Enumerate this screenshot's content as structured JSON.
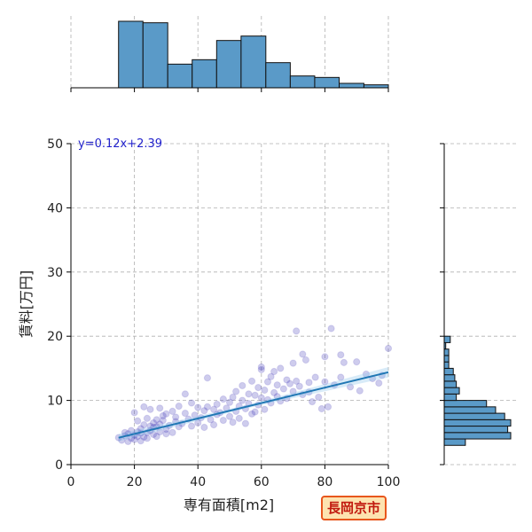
{
  "chart_data": {
    "type": "scatter",
    "xlabel": "専有面積[m2]",
    "ylabel": "賃料[万円]",
    "xlim": [
      0,
      100
    ],
    "ylim": [
      0,
      50
    ],
    "x_ticks": [
      0,
      20,
      40,
      60,
      80,
      100
    ],
    "y_ticks": [
      0,
      10,
      20,
      30,
      40,
      50
    ],
    "grid": true,
    "equation": "y=0.12x+2.39",
    "regression": {
      "slope": 0.12,
      "intercept": 2.39,
      "x_range": [
        15,
        100
      ]
    },
    "badge": "長岡京市",
    "colors": {
      "points": "#3a32b8",
      "line": "#1f77b4",
      "hist": "#5a9ac8",
      "equation": "#2222cc",
      "badge_border": "#e8561c",
      "badge_text": "#c1190e"
    },
    "points": [
      [
        15,
        4.2
      ],
      [
        16,
        3.8
      ],
      [
        17,
        4.5
      ],
      [
        17,
        5.0
      ],
      [
        18,
        3.6
      ],
      [
        18,
        4.8
      ],
      [
        19,
        4.1
      ],
      [
        19,
        5.3
      ],
      [
        20,
        3.9
      ],
      [
        20,
        4.6
      ],
      [
        20,
        8.1
      ],
      [
        21,
        4.4
      ],
      [
        21,
        5.1
      ],
      [
        21,
        6.8
      ],
      [
        22,
        3.7
      ],
      [
        22,
        4.9
      ],
      [
        22,
        5.6
      ],
      [
        23,
        4.3
      ],
      [
        23,
        6.2
      ],
      [
        23,
        9.0
      ],
      [
        24,
        5.0
      ],
      [
        24,
        7.2
      ],
      [
        24,
        4.1
      ],
      [
        25,
        6.0
      ],
      [
        25,
        5.3
      ],
      [
        25,
        8.6
      ],
      [
        26,
        4.7
      ],
      [
        26,
        6.5
      ],
      [
        26,
        5.8
      ],
      [
        27,
        7.0
      ],
      [
        27,
        4.4
      ],
      [
        27,
        5.9
      ],
      [
        28,
        6.3
      ],
      [
        28,
        8.8
      ],
      [
        28,
        5.1
      ],
      [
        29,
        6.9
      ],
      [
        29,
        7.6
      ],
      [
        30,
        5.5
      ],
      [
        30,
        4.8
      ],
      [
        30,
        7.9
      ],
      [
        31,
        6.1
      ],
      [
        32,
        5.0
      ],
      [
        32,
        8.3
      ],
      [
        33,
        6.7
      ],
      [
        33,
        7.4
      ],
      [
        34,
        5.9
      ],
      [
        34,
        9.1
      ],
      [
        35,
        6.4
      ],
      [
        36,
        8.0
      ],
      [
        36,
        11.0
      ],
      [
        37,
        7.1
      ],
      [
        38,
        6.0
      ],
      [
        38,
        9.6
      ],
      [
        39,
        7.7
      ],
      [
        40,
        6.5
      ],
      [
        40,
        8.9
      ],
      [
        41,
        7.3
      ],
      [
        42,
        8.4
      ],
      [
        42,
        5.8
      ],
      [
        43,
        9.0
      ],
      [
        43,
        13.5
      ],
      [
        44,
        7.0
      ],
      [
        45,
        8.6
      ],
      [
        45,
        6.2
      ],
      [
        46,
        9.4
      ],
      [
        46,
        7.8
      ],
      [
        47,
        8.1
      ],
      [
        48,
        10.2
      ],
      [
        48,
        6.9
      ],
      [
        49,
        8.8
      ],
      [
        50,
        7.5
      ],
      [
        50,
        9.7
      ],
      [
        51,
        10.5
      ],
      [
        51,
        6.6
      ],
      [
        52,
        8.3
      ],
      [
        52,
        11.4
      ],
      [
        53,
        9.1
      ],
      [
        53,
        7.2
      ],
      [
        54,
        10.0
      ],
      [
        54,
        12.3
      ],
      [
        55,
        8.7
      ],
      [
        55,
        6.4
      ],
      [
        56,
        11.0
      ],
      [
        56,
        9.5
      ],
      [
        57,
        13.0
      ],
      [
        57,
        7.9
      ],
      [
        58,
        10.8
      ],
      [
        58,
        8.2
      ],
      [
        59,
        12.0
      ],
      [
        59,
        9.3
      ],
      [
        60,
        14.8
      ],
      [
        60,
        15.2
      ],
      [
        60,
        10.4
      ],
      [
        61,
        11.6
      ],
      [
        61,
        8.6
      ],
      [
        62,
        12.9
      ],
      [
        62,
        10.1
      ],
      [
        63,
        9.6
      ],
      [
        63,
        13.7
      ],
      [
        64,
        11.2
      ],
      [
        64,
        14.5
      ],
      [
        65,
        10.6
      ],
      [
        65,
        12.4
      ],
      [
        66,
        9.9
      ],
      [
        66,
        15.0
      ],
      [
        67,
        11.8
      ],
      [
        68,
        13.2
      ],
      [
        68,
        10.3
      ],
      [
        69,
        12.6
      ],
      [
        70,
        11.4
      ],
      [
        70,
        15.8
      ],
      [
        71,
        20.8
      ],
      [
        71,
        13.0
      ],
      [
        72,
        12.2
      ],
      [
        73,
        17.2
      ],
      [
        73,
        10.9
      ],
      [
        74,
        16.3
      ],
      [
        75,
        12.8
      ],
      [
        75,
        11.3
      ],
      [
        76,
        9.8
      ],
      [
        77,
        13.6
      ],
      [
        78,
        10.5
      ],
      [
        79,
        8.7
      ],
      [
        80,
        12.9
      ],
      [
        80,
        16.8
      ],
      [
        81,
        9.0
      ],
      [
        82,
        21.2
      ],
      [
        83,
        12.4
      ],
      [
        85,
        17.1
      ],
      [
        85,
        13.6
      ],
      [
        86,
        15.9
      ],
      [
        88,
        12.1
      ],
      [
        90,
        16.0
      ],
      [
        91,
        11.5
      ],
      [
        93,
        14.1
      ],
      [
        95,
        13.4
      ],
      [
        97,
        12.7
      ],
      [
        98,
        13.9
      ],
      [
        100,
        18.1
      ]
    ],
    "top_hist": {
      "bin_edges": [
        15,
        22.7,
        30.5,
        38.2,
        45.9,
        53.6,
        61.4,
        69.1,
        76.8,
        84.5,
        92.3,
        100
      ],
      "counts": [
        45,
        44,
        16,
        19,
        32,
        35,
        17,
        8,
        7,
        3,
        2
      ]
    },
    "right_hist": {
      "bin_edges": [
        3,
        4,
        5,
        6,
        7,
        8,
        9,
        10,
        11,
        12,
        13,
        14,
        15,
        16,
        17,
        18,
        19,
        20,
        21
      ],
      "counts": [
        14,
        44,
        42,
        44,
        40,
        34,
        28,
        8,
        10,
        8,
        7,
        6,
        3,
        3,
        3,
        1,
        4,
        0
      ]
    }
  }
}
